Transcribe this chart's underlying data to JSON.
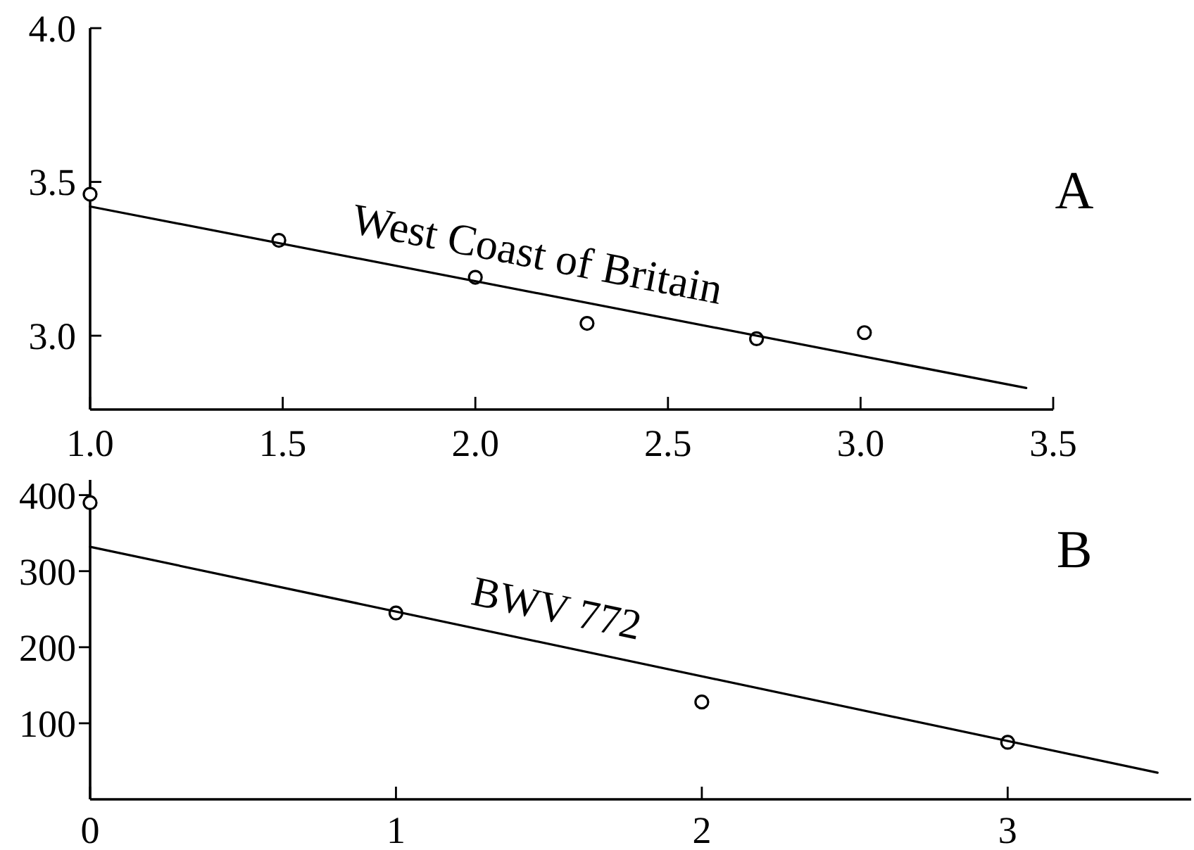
{
  "chart_data": [
    {
      "type": "scatter",
      "title": "A",
      "xlim": [
        1.0,
        3.5
      ],
      "xticks": [
        {
          "value": 1,
          "label": "1.0"
        },
        1.5,
        {
          "value": 2,
          "label": "2.0"
        },
        2.5,
        {
          "value": 3,
          "label": "3.0"
        },
        3.5
      ],
      "ylim": [
        2.76,
        4.0
      ],
      "yticks": [
        {
          "value": 3,
          "label": "3.0"
        },
        3.5,
        {
          "value": 4,
          "label": "4.0"
        }
      ],
      "marker": "circle",
      "series": [
        {
          "color": "#000000",
          "x": [
            1.0,
            1.49,
            2.0,
            2.29,
            2.73,
            3.01
          ],
          "values": [
            3.46,
            3.31,
            3.19,
            3.04,
            2.99,
            3.01
          ]
        },
        {
          "type": "line",
          "name": "West Coast of Britain",
          "color": "#000000",
          "marker": "none",
          "x": [
            1.0,
            3.43
          ],
          "values": [
            3.42,
            2.83
          ]
        }
      ]
    },
    {
      "type": "scatter",
      "title": "B",
      "xlim": [
        0,
        3.6
      ],
      "xticks": [
        0,
        1,
        2,
        3
      ],
      "ylim": [
        0,
        420
      ],
      "yticks": [
        100,
        200,
        300,
        400
      ],
      "marker": "circle",
      "series": [
        {
          "color": "#000000",
          "x": [
            0,
            1,
            2,
            3
          ],
          "values": [
            390,
            245,
            128,
            75
          ]
        },
        {
          "type": "line",
          "name": "BWV 772",
          "color": "#000000",
          "marker": "none",
          "x": [
            0,
            3.49
          ],
          "values": [
            332,
            35
          ]
        }
      ]
    }
  ]
}
